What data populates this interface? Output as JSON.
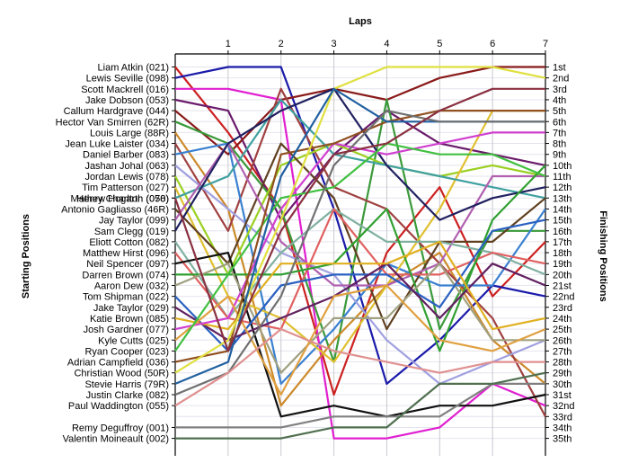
{
  "chart_data": {
    "type": "line",
    "title": "",
    "top_axis_label": "Laps",
    "left_axis_label": "Starting Positions",
    "right_axis_label": "Finishing Positions",
    "laps": [
      "1",
      "2",
      "3",
      "4",
      "5",
      "6",
      "7"
    ],
    "x_range": [
      0,
      7
    ],
    "y_range": [
      1,
      35
    ],
    "y_inverted": true,
    "grid": true,
    "finishing_labels": [
      "1st",
      "2nd",
      "3rd",
      "4th",
      "5th",
      "6th",
      "7th",
      "8th",
      "9th",
      "10th",
      "11th",
      "12th",
      "13th",
      "14th",
      "15th",
      "16th",
      "17th",
      "18th",
      "19th",
      "20th",
      "21st",
      "22nd",
      "23rd",
      "24th",
      "25th",
      "26th",
      "27th",
      "28th",
      "29th",
      "30th",
      "31st",
      "32nd",
      "33rd",
      "34th",
      "35th"
    ],
    "series": [
      {
        "name": "Liam Atkin (021)",
        "color": "#cc2020",
        "values": [
          1,
          7,
          14,
          31,
          18,
          12,
          22,
          17
        ]
      },
      {
        "name": "Lewis Seville (098)",
        "color": "#1a1aaa",
        "values": [
          2,
          1,
          1,
          14,
          30,
          26,
          21,
          22
        ]
      },
      {
        "name": "Scott Mackrell (016)",
        "color": "#e020d0",
        "values": [
          3,
          3,
          4,
          35,
          35,
          34,
          30,
          32
        ]
      },
      {
        "name": "Jake Dobson (053)",
        "color": "#6a1a6a",
        "values": [
          4,
          5,
          15,
          9,
          5,
          8,
          9,
          10
        ]
      },
      {
        "name": "Callum Hardgrave (044)",
        "color": "#8a1a1a",
        "values": [
          5,
          9,
          4,
          3,
          4,
          2,
          1,
          1
        ]
      },
      {
        "name": "Hector Van Smirren (62R)",
        "color": "#3a9a3a",
        "values": [
          6,
          8,
          14,
          28,
          4,
          25,
          16,
          16
        ]
      },
      {
        "name": "Louis Large (88R)",
        "color": "#cc8a2a",
        "values": [
          7,
          14,
          32,
          26,
          21,
          18,
          26,
          30
        ]
      },
      {
        "name": "Jean Luke Laister (034)",
        "color": "#a04040",
        "values": [
          8,
          16,
          3,
          12,
          14,
          19,
          24,
          33
        ]
      },
      {
        "name": "Daniel Barber (083)",
        "color": "#3a80d0",
        "values": [
          9,
          8,
          30,
          25,
          19,
          21,
          21,
          14
        ]
      },
      {
        "name": "Jashan Johal (063)",
        "color": "#a0a0e0",
        "values": [
          10,
          14,
          18,
          20,
          26,
          30,
          28,
          26
        ]
      },
      {
        "name": "Jordan Lewis (078)",
        "color": "#9ad020",
        "values": [
          11,
          20,
          10,
          8,
          10,
          11,
          10,
          11
        ]
      },
      {
        "name": "Tim Patterson (027)",
        "color": "#e0c030",
        "values": [
          12,
          22,
          24,
          28,
          21,
          14,
          5,
          5
        ]
      },
      {
        "name": "Henry Charlton (070)",
        "color": "#40a0a0",
        "values": [
          13,
          11,
          4,
          9,
          10,
          11,
          12,
          13
        ]
      },
      {
        "name": "Antonio Gagliasso (46R)",
        "color": "#604020",
        "values": [
          14,
          19,
          8,
          13,
          25,
          17,
          17,
          13
        ]
      },
      {
        "name": "Jay Taylor (099)",
        "color": "#b060b0",
        "values": [
          15,
          8,
          17,
          21,
          21,
          19,
          11,
          11
        ]
      },
      {
        "name": "Sam Clegg (019)",
        "color": "#202060",
        "values": [
          16,
          8,
          5,
          3,
          10,
          15,
          13,
          12
        ]
      },
      {
        "name": "Eliott Cotton (082)",
        "color": "#80b0a0",
        "values": [
          17,
          24,
          18,
          14,
          17,
          17,
          18,
          20
        ]
      },
      {
        "name": "Matthew Hirst (096)",
        "color": "#e06060",
        "values": [
          18,
          24,
          25,
          14,
          20,
          20,
          18,
          19
        ]
      },
      {
        "name": "Neil Spencer (097)",
        "color": "#101010",
        "values": [
          19,
          18,
          33,
          32,
          33,
          32,
          32,
          31
        ]
      },
      {
        "name": "Darren Brown (074)",
        "color": "#30a030",
        "values": [
          20,
          20,
          20,
          19,
          14,
          27,
          15,
          10
        ]
      },
      {
        "name": "Aaron Dew (032)",
        "color": "#a0a080",
        "values": [
          21,
          19,
          29,
          24,
          24,
          19,
          26,
          26
        ]
      },
      {
        "name": "Tom Shipman (022)",
        "color": "#2a60c0",
        "values": [
          22,
          27,
          21,
          20,
          20,
          23,
          16,
          15
        ]
      },
      {
        "name": "Jake Taylor (029)",
        "color": "#602060",
        "values": [
          23,
          26,
          24,
          22,
          19,
          24,
          19,
          21
        ]
      },
      {
        "name": "Katie Brown (085)",
        "color": "#e0b020",
        "values": [
          24,
          25,
          19,
          19,
          19,
          17,
          25,
          24
        ]
      },
      {
        "name": "Josh Gardner (077)",
        "color": "#d040d0",
        "values": [
          25,
          24,
          14,
          8,
          9,
          8,
          7,
          7
        ]
      },
      {
        "name": "Kyle Cutts (025)",
        "color": "#e0a040",
        "values": [
          26,
          22,
          31,
          22,
          21,
          26,
          27,
          25
        ]
      },
      {
        "name": "Ryan Cooper (023)",
        "color": "#40c040",
        "values": [
          27,
          20,
          13,
          12,
          8,
          9,
          9,
          11
        ]
      },
      {
        "name": "Adrian Campfield (036)",
        "color": "#905020",
        "values": [
          28,
          27,
          9,
          8,
          6,
          5,
          5,
          5
        ]
      },
      {
        "name": "Christian Wood (50R)",
        "color": "#e0e040",
        "values": [
          29,
          26,
          15,
          3,
          1,
          1,
          1,
          2
        ]
      },
      {
        "name": "Stevie Harris (79R)",
        "color": "#2060a0",
        "values": [
          30,
          28,
          11,
          3,
          6,
          6,
          6,
          6
        ]
      },
      {
        "name": "Justin Clarke (082)",
        "color": "#707070",
        "values": [
          31,
          29,
          22,
          10,
          5,
          6,
          6,
          6
        ]
      },
      {
        "name": "Paul Waddington (055)",
        "color": "#e09090",
        "values": [
          32,
          29,
          25,
          27,
          28,
          29,
          28,
          28
        ]
      },
      {
        "name": "Remy Deguffroy (001)",
        "color": "#808080",
        "values": [
          34,
          34,
          34,
          33,
          33,
          33,
          30,
          30
        ]
      },
      {
        "name": "Valentin Moineault (002)",
        "color": "#507050",
        "values": [
          35,
          35,
          35,
          34,
          34,
          30,
          30,
          29
        ]
      },
      {
        "name": "Mathew Hogarth (058)",
        "color": "#8a3040",
        "values": [
          13,
          27,
          16,
          9,
          8,
          5,
          3,
          3
        ]
      }
    ]
  }
}
